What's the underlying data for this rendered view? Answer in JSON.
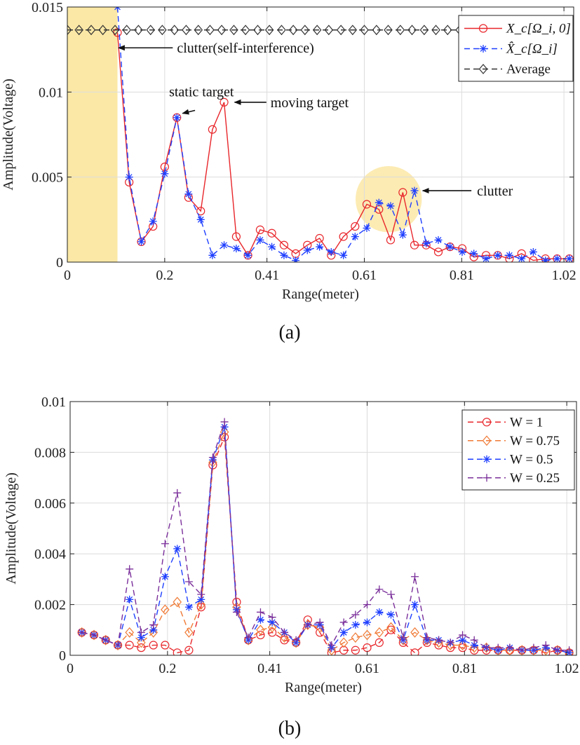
{
  "chart_data": [
    {
      "type": "line",
      "panel": "(a)",
      "xlabel": "Range(meter)",
      "ylabel": "Amplitude(Voltage)",
      "xlim": [
        0,
        1.04
      ],
      "ylim": [
        0,
        0.015
      ],
      "xticks": [
        0,
        0.2,
        0.41,
        0.61,
        0.81,
        1.02
      ],
      "xtick_labels": [
        "0",
        "0.2",
        "0.41",
        "0.61",
        "0.81",
        "1.02"
      ],
      "yticks": [
        0,
        0.005,
        0.01,
        0.015
      ],
      "ytick_labels": [
        "0",
        "0.005",
        "0.01",
        "0.015"
      ],
      "grid": true,
      "legend_placement": "top-right",
      "highlight_band": [
        0,
        0.103
      ],
      "clutter_circle": {
        "x": 0.66,
        "y": 0.0037,
        "r": 0.068
      },
      "series": [
        {
          "name": "X_c[Ω_i, 0]",
          "color": "#e8262b",
          "style": "solid",
          "marker": "circle",
          "x": [
            0.103,
            0.127,
            0.152,
            0.176,
            0.2,
            0.225,
            0.249,
            0.274,
            0.298,
            0.322,
            0.347,
            0.371,
            0.396,
            0.42,
            0.445,
            0.469,
            0.493,
            0.518,
            0.542,
            0.567,
            0.591,
            0.615,
            0.64,
            0.664,
            0.689,
            0.713,
            0.737,
            0.762,
            0.786,
            0.811,
            0.835,
            0.86,
            0.884,
            0.908,
            0.933,
            0.957,
            0.982,
            1.006,
            1.031
          ],
          "y": [
            0.0135,
            0.0047,
            0.0012,
            0.0021,
            0.0056,
            0.0085,
            0.0038,
            0.003,
            0.0078,
            0.0094,
            0.0015,
            0.0004,
            0.0019,
            0.0017,
            0.001,
            0.0005,
            0.001,
            0.0014,
            0.0004,
            0.0015,
            0.0021,
            0.0034,
            0.0031,
            0.0013,
            0.0041,
            0.001,
            0.001,
            0.0006,
            0.0009,
            0.0008,
            0.0003,
            0.0004,
            0.0004,
            0.0002,
            0.0005,
            0.0001,
            0.0002,
            0.0002,
            0.0002
          ]
        },
        {
          "name": "X̂_c[Ω_i]",
          "color": "#1f3fff",
          "style": "dashed",
          "marker": "asterisk",
          "x": [
            0.103,
            0.127,
            0.152,
            0.176,
            0.2,
            0.225,
            0.249,
            0.274,
            0.298,
            0.322,
            0.347,
            0.371,
            0.396,
            0.42,
            0.445,
            0.469,
            0.493,
            0.518,
            0.542,
            0.567,
            0.591,
            0.615,
            0.64,
            0.664,
            0.689,
            0.713,
            0.737,
            0.762,
            0.786,
            0.811,
            0.835,
            0.86,
            0.884,
            0.908,
            0.933,
            0.957,
            0.982,
            1.006,
            1.031
          ],
          "y": [
            0.015,
            0.005,
            0.0012,
            0.0024,
            0.0052,
            0.0085,
            0.004,
            0.0025,
            0.0004,
            0.001,
            0.0008,
            0.0004,
            0.0013,
            0.0009,
            0.0004,
            0.0001,
            0.0007,
            0.0009,
            0.0006,
            0.0004,
            0.0015,
            0.002,
            0.0035,
            0.0033,
            0.0016,
            0.0042,
            0.0011,
            0.0013,
            0.0009,
            0.0006,
            0.0005,
            0.0002,
            0.0004,
            0.0004,
            0.0002,
            0.0006,
            0.0001,
            0.0002,
            0.0002
          ]
        },
        {
          "name": "Average",
          "color": "#333333",
          "style": "dashed",
          "marker": "diamond",
          "x": [
            0.0,
            0.024,
            0.049,
            0.073,
            0.098,
            0.122,
            0.146,
            0.171,
            0.195,
            0.22,
            0.244,
            0.269,
            0.293,
            0.317,
            0.342,
            0.366,
            0.391,
            0.415,
            0.44,
            0.464,
            0.488,
            0.513,
            0.537,
            0.562,
            0.586,
            0.61,
            0.635,
            0.659,
            0.684,
            0.708,
            0.733,
            0.757,
            0.781,
            0.806,
            0.83,
            0.855,
            0.879,
            0.903,
            0.928,
            0.952,
            0.977,
            1.001,
            1.025
          ],
          "y": [
            0.01365,
            0.01365,
            0.01365,
            0.01365,
            0.01365,
            0.01365,
            0.01365,
            0.01365,
            0.01365,
            0.01365,
            0.01365,
            0.01365,
            0.01365,
            0.01365,
            0.01365,
            0.01365,
            0.01365,
            0.01365,
            0.01365,
            0.01365,
            0.01365,
            0.01365,
            0.01365,
            0.01365,
            0.01365,
            0.01365,
            0.01365,
            0.01365,
            0.01365,
            0.01365,
            0.01365,
            0.01365,
            0.01365,
            0.01365,
            0.01365,
            0.01365,
            0.01365,
            0.01365,
            0.01365,
            0.01365,
            0.01365,
            0.01365,
            0.01365
          ]
        }
      ],
      "annotations": [
        {
          "text": "clutter(self-interference)",
          "ax": 0.133,
          "ay": 0.0126,
          "x": 0.105,
          "y": 0.0126
        },
        {
          "text": "static target",
          "ax": 0.245,
          "ay": 0.0095,
          "x": 0.228,
          "y": 0.0085
        },
        {
          "text": "moving target",
          "ax": 0.38,
          "ay": 0.0094,
          "x": 0.332,
          "y": 0.0094
        },
        {
          "text": "clutter",
          "ax": 0.755,
          "ay": 0.0042,
          "x": 0.727,
          "y": 0.0042
        }
      ]
    },
    {
      "type": "line",
      "panel": "(b)",
      "xlabel": "Range(meter)",
      "ylabel": "Amplitude(Voltage)",
      "xlim": [
        0,
        1.04
      ],
      "ylim": [
        0,
        0.01
      ],
      "xticks": [
        0,
        0.2,
        0.41,
        0.61,
        0.81,
        1.02
      ],
      "xtick_labels": [
        "0",
        "0.2",
        "0.41",
        "0.61",
        "0.81",
        "1.02"
      ],
      "yticks": [
        0,
        0.002,
        0.004,
        0.006,
        0.008,
        0.01
      ],
      "ytick_labels": [
        "0",
        "0.002",
        "0.004",
        "0.006",
        "0.008",
        "0.01"
      ],
      "grid": true,
      "legend_placement": "top-right",
      "series": [
        {
          "name": "W = 1",
          "color": "#e8262b",
          "style": "dashed",
          "marker": "circle",
          "x": [
            0.024,
            0.049,
            0.073,
            0.098,
            0.122,
            0.146,
            0.171,
            0.195,
            0.22,
            0.244,
            0.269,
            0.293,
            0.317,
            0.342,
            0.366,
            0.391,
            0.415,
            0.44,
            0.464,
            0.488,
            0.513,
            0.537,
            0.562,
            0.586,
            0.61,
            0.635,
            0.659,
            0.684,
            0.708,
            0.733,
            0.757,
            0.781,
            0.806,
            0.83,
            0.855,
            0.879,
            0.903,
            0.928,
            0.952,
            0.977,
            1.001,
            1.025
          ],
          "y": [
            0.0009,
            0.0008,
            0.0006,
            0.0004,
            0.0004,
            0.0003,
            0.0004,
            0.0004,
            0.0001,
            0.0002,
            0.0019,
            0.0075,
            0.0086,
            0.0021,
            0.0006,
            0.0008,
            0.0009,
            0.0006,
            0.0005,
            0.0014,
            0.0009,
            0.0001,
            0.0002,
            0.0002,
            0.0003,
            0.0005,
            0.001,
            0.0005,
            0.0001,
            0.0005,
            0.0004,
            0.0003,
            0.0003,
            0.0002,
            0.0002,
            0.0002,
            0.0002,
            0.0002,
            0.0002,
            0.0001,
            0.0002,
            0.0001
          ]
        },
        {
          "name": "W = 0.75",
          "color": "#f07a35",
          "style": "dashed",
          "marker": "diamond",
          "x": [
            0.024,
            0.049,
            0.073,
            0.098,
            0.122,
            0.146,
            0.171,
            0.195,
            0.22,
            0.244,
            0.269,
            0.293,
            0.317,
            0.342,
            0.366,
            0.391,
            0.415,
            0.44,
            0.464,
            0.488,
            0.513,
            0.537,
            0.562,
            0.586,
            0.61,
            0.635,
            0.659,
            0.684,
            0.708,
            0.733,
            0.757,
            0.781,
            0.806,
            0.83,
            0.855,
            0.879,
            0.903,
            0.928,
            0.952,
            0.977,
            1.001,
            1.025
          ],
          "y": [
            0.0009,
            0.0008,
            0.0006,
            0.0004,
            0.0009,
            0.0005,
            0.0009,
            0.0018,
            0.0021,
            0.0009,
            0.002,
            0.0076,
            0.0088,
            0.0019,
            0.0006,
            0.001,
            0.0011,
            0.0007,
            0.0005,
            0.0012,
            0.0011,
            0.0002,
            0.0005,
            0.0007,
            0.0008,
            0.0009,
            0.0011,
            0.0006,
            0.0009,
            0.0006,
            0.0005,
            0.0004,
            0.0004,
            0.0003,
            0.0003,
            0.0002,
            0.0002,
            0.0002,
            0.0002,
            0.0002,
            0.0002,
            0.0001
          ]
        },
        {
          "name": "W = 0.5",
          "color": "#1f3fff",
          "style": "dashed",
          "marker": "asterisk",
          "x": [
            0.024,
            0.049,
            0.073,
            0.098,
            0.122,
            0.146,
            0.171,
            0.195,
            0.22,
            0.244,
            0.269,
            0.293,
            0.317,
            0.342,
            0.366,
            0.391,
            0.415,
            0.44,
            0.464,
            0.488,
            0.513,
            0.537,
            0.562,
            0.586,
            0.61,
            0.635,
            0.659,
            0.684,
            0.708,
            0.733,
            0.757,
            0.781,
            0.806,
            0.83,
            0.855,
            0.879,
            0.903,
            0.928,
            0.952,
            0.977,
            1.001,
            1.025
          ],
          "y": [
            0.0009,
            0.0008,
            0.0006,
            0.0004,
            0.0022,
            0.0007,
            0.001,
            0.0031,
            0.0042,
            0.0019,
            0.0022,
            0.0077,
            0.009,
            0.0018,
            0.0006,
            0.0014,
            0.0013,
            0.0009,
            0.0005,
            0.0012,
            0.0012,
            0.0003,
            0.0009,
            0.0012,
            0.0013,
            0.0017,
            0.0016,
            0.0006,
            0.002,
            0.0006,
            0.0006,
            0.0005,
            0.0006,
            0.0004,
            0.0003,
            0.0002,
            0.0003,
            0.0002,
            0.0002,
            0.0003,
            0.0002,
            0.0001
          ]
        },
        {
          "name": "W = 0.25",
          "color": "#7a2f9a",
          "style": "dashed",
          "marker": "plus",
          "x": [
            0.024,
            0.049,
            0.073,
            0.098,
            0.122,
            0.146,
            0.171,
            0.195,
            0.22,
            0.244,
            0.269,
            0.293,
            0.317,
            0.342,
            0.366,
            0.391,
            0.415,
            0.44,
            0.464,
            0.488,
            0.513,
            0.537,
            0.562,
            0.586,
            0.61,
            0.635,
            0.659,
            0.684,
            0.708,
            0.733,
            0.757,
            0.781,
            0.806,
            0.83,
            0.855,
            0.879,
            0.903,
            0.928,
            0.952,
            0.977,
            1.001,
            1.025
          ],
          "y": [
            0.0009,
            0.0008,
            0.0006,
            0.0004,
            0.0034,
            0.0009,
            0.0012,
            0.0044,
            0.0064,
            0.0029,
            0.0024,
            0.0078,
            0.0092,
            0.0017,
            0.0007,
            0.0017,
            0.0015,
            0.0009,
            0.0006,
            0.0012,
            0.0013,
            0.0004,
            0.0013,
            0.0016,
            0.002,
            0.0026,
            0.0024,
            0.0007,
            0.0031,
            0.0007,
            0.0006,
            0.0005,
            0.0008,
            0.0006,
            0.0003,
            0.0003,
            0.0003,
            0.0002,
            0.0003,
            0.0004,
            0.0002,
            0.0002
          ]
        }
      ]
    }
  ],
  "captions": [
    "(a)",
    "(b)"
  ],
  "legend_a": [
    "X_c[Ω_i, 0]",
    "X̂_c[Ω_i]",
    "Average"
  ],
  "legend_b": [
    "W = 1",
    "W = 0.75",
    "W = 0.5",
    "W = 0.25"
  ]
}
